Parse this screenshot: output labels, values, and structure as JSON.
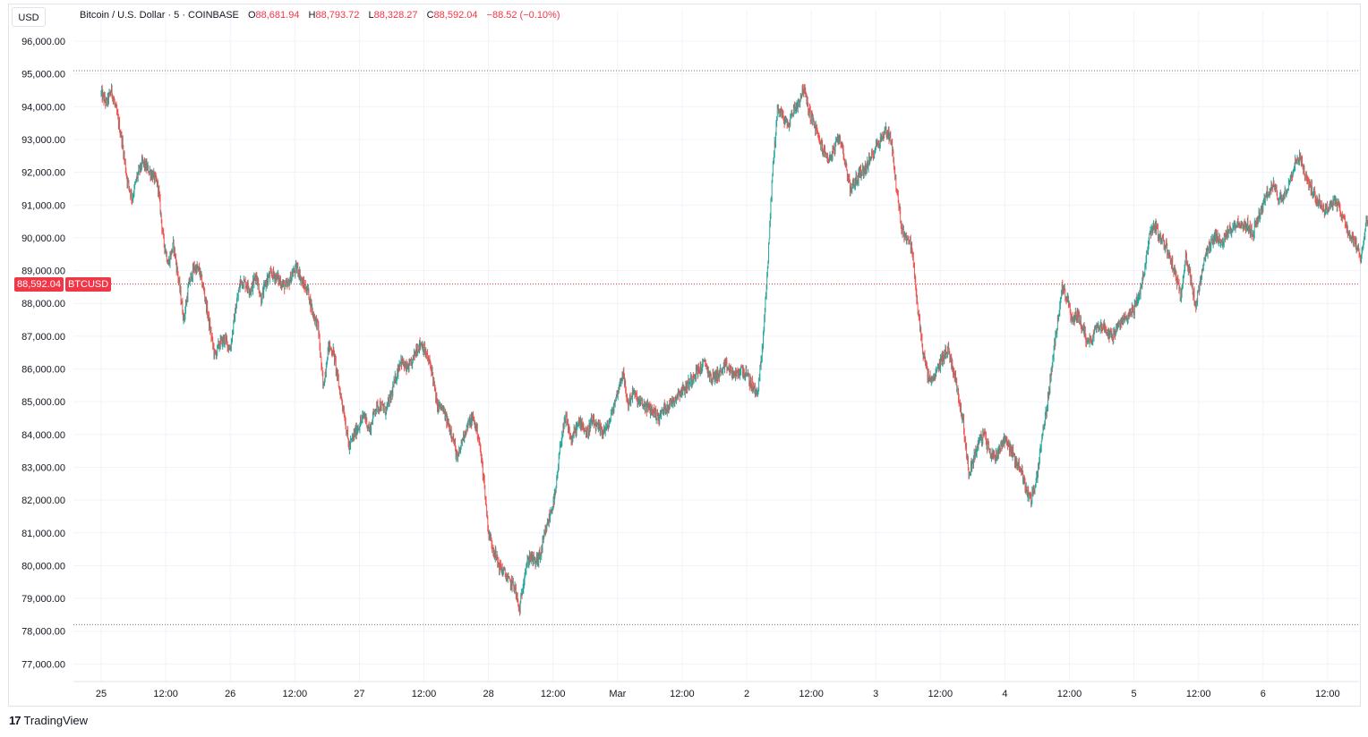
{
  "currency_button": "USD",
  "legend": {
    "instrument": "Bitcoin / U.S. Dollar · 5 · COINBASE",
    "o_label": "O",
    "o_value": "88,681.94",
    "h_label": "H",
    "h_value": "88,793.72",
    "l_label": "L",
    "l_value": "88,328.27",
    "c_label": "C",
    "c_value": "88,592.04",
    "change": "−88.52 (−0.10%)"
  },
  "price_tag": {
    "price": "88,592.04",
    "symbol": "BTCUSD"
  },
  "brand": {
    "logo": "17",
    "name": "TradingView"
  },
  "colors": {
    "up": "#26a69a",
    "down": "#ef5350",
    "accent": "#f23645",
    "grid": "#f0f3fa"
  },
  "chart_data": {
    "type": "candlestick",
    "symbol": "BTCUSD",
    "interval": "5",
    "y_ticks": [
      "77,000.00",
      "78,000.00",
      "79,000.00",
      "80,000.00",
      "81,000.00",
      "82,000.00",
      "83,000.00",
      "84,000.00",
      "85,000.00",
      "86,000.00",
      "87,000.00",
      "88,000.00",
      "89,000.00",
      "90,000.00",
      "91,000.00",
      "92,000.00",
      "93,000.00",
      "94,000.00",
      "95,000.00",
      "96,000.00"
    ],
    "ylim": [
      76500,
      96700
    ],
    "x_ticks": [
      "25",
      "12:00",
      "26",
      "12:00",
      "27",
      "12:00",
      "28",
      "12:00",
      "Mar",
      "12:00",
      "2",
      "12:00",
      "3",
      "12:00",
      "4",
      "12:00",
      "5",
      "12:00",
      "6",
      "12:00"
    ],
    "xlim": [
      0,
      10.04
    ],
    "range_high": 95100,
    "range_low": 78200,
    "last_price": 88592.04,
    "path": [
      [
        0.0,
        94400
      ],
      [
        0.04,
        94100
      ],
      [
        0.08,
        94500
      ],
      [
        0.12,
        93800
      ],
      [
        0.16,
        93000
      ],
      [
        0.2,
        91800
      ],
      [
        0.24,
        91200
      ],
      [
        0.28,
        91900
      ],
      [
        0.32,
        92300
      ],
      [
        0.36,
        92100
      ],
      [
        0.4,
        91900
      ],
      [
        0.44,
        91600
      ],
      [
        0.48,
        90000
      ],
      [
        0.52,
        89200
      ],
      [
        0.56,
        89800
      ],
      [
        0.6,
        88700
      ],
      [
        0.64,
        87500
      ],
      [
        0.68,
        88600
      ],
      [
        0.72,
        89100
      ],
      [
        0.76,
        89000
      ],
      [
        0.8,
        88300
      ],
      [
        0.84,
        87300
      ],
      [
        0.88,
        86400
      ],
      [
        0.92,
        86800
      ],
      [
        0.96,
        86900
      ],
      [
        1.0,
        86600
      ],
      [
        1.04,
        87800
      ],
      [
        1.08,
        88700
      ],
      [
        1.12,
        88600
      ],
      [
        1.16,
        88400
      ],
      [
        1.2,
        88900
      ],
      [
        1.24,
        88100
      ],
      [
        1.28,
        88700
      ],
      [
        1.32,
        88900
      ],
      [
        1.36,
        88800
      ],
      [
        1.4,
        88600
      ],
      [
        1.44,
        88500
      ],
      [
        1.48,
        88900
      ],
      [
        1.52,
        89100
      ],
      [
        1.56,
        88600
      ],
      [
        1.6,
        88400
      ],
      [
        1.64,
        87700
      ],
      [
        1.68,
        87300
      ],
      [
        1.72,
        85400
      ],
      [
        1.76,
        86700
      ],
      [
        1.8,
        86500
      ],
      [
        1.84,
        85500
      ],
      [
        1.88,
        84700
      ],
      [
        1.92,
        83600
      ],
      [
        1.96,
        84000
      ],
      [
        2.0,
        84300
      ],
      [
        2.04,
        84600
      ],
      [
        2.08,
        84100
      ],
      [
        2.12,
        84800
      ],
      [
        2.16,
        84900
      ],
      [
        2.2,
        84700
      ],
      [
        2.24,
        85100
      ],
      [
        2.28,
        85700
      ],
      [
        2.32,
        86300
      ],
      [
        2.36,
        86000
      ],
      [
        2.4,
        86100
      ],
      [
        2.44,
        86600
      ],
      [
        2.48,
        86800
      ],
      [
        2.52,
        86400
      ],
      [
        2.56,
        86000
      ],
      [
        2.6,
        84900
      ],
      [
        2.64,
        84800
      ],
      [
        2.68,
        84400
      ],
      [
        2.72,
        84000
      ],
      [
        2.76,
        83200
      ],
      [
        2.8,
        83900
      ],
      [
        2.84,
        84300
      ],
      [
        2.88,
        84500
      ],
      [
        2.92,
        84000
      ],
      [
        2.96,
        82800
      ],
      [
        3.0,
        81000
      ],
      [
        3.04,
        80500
      ],
      [
        3.08,
        80000
      ],
      [
        3.12,
        79800
      ],
      [
        3.16,
        79500
      ],
      [
        3.2,
        79400
      ],
      [
        3.24,
        78600
      ],
      [
        3.28,
        79800
      ],
      [
        3.32,
        80300
      ],
      [
        3.36,
        80100
      ],
      [
        3.4,
        80300
      ],
      [
        3.44,
        81000
      ],
      [
        3.48,
        81600
      ],
      [
        3.52,
        82200
      ],
      [
        3.56,
        83800
      ],
      [
        3.6,
        84500
      ],
      [
        3.64,
        83800
      ],
      [
        3.68,
        84200
      ],
      [
        3.72,
        84400
      ],
      [
        3.76,
        84000
      ],
      [
        3.8,
        84400
      ],
      [
        3.84,
        84200
      ],
      [
        3.88,
        84100
      ],
      [
        3.92,
        84200
      ],
      [
        3.96,
        84700
      ],
      [
        4.0,
        85300
      ],
      [
        4.04,
        85900
      ],
      [
        4.08,
        84900
      ],
      [
        4.12,
        85300
      ],
      [
        4.16,
        85000
      ],
      [
        4.2,
        84900
      ],
      [
        4.24,
        84800
      ],
      [
        4.28,
        84700
      ],
      [
        4.32,
        84500
      ],
      [
        4.36,
        84800
      ],
      [
        4.4,
        84900
      ],
      [
        4.44,
        85100
      ],
      [
        4.48,
        85300
      ],
      [
        4.52,
        85400
      ],
      [
        4.56,
        85600
      ],
      [
        4.6,
        85900
      ],
      [
        4.64,
        86000
      ],
      [
        4.68,
        86200
      ],
      [
        4.72,
        85700
      ],
      [
        4.76,
        85800
      ],
      [
        4.8,
        85900
      ],
      [
        4.84,
        86100
      ],
      [
        4.88,
        85900
      ],
      [
        4.92,
        85800
      ],
      [
        4.96,
        86000
      ],
      [
        5.0,
        85800
      ],
      [
        5.04,
        85500
      ],
      [
        5.08,
        85200
      ],
      [
        5.12,
        86500
      ],
      [
        5.16,
        89000
      ],
      [
        5.2,
        92000
      ],
      [
        5.24,
        94000
      ],
      [
        5.28,
        93700
      ],
      [
        5.32,
        93400
      ],
      [
        5.36,
        93900
      ],
      [
        5.4,
        94100
      ],
      [
        5.44,
        94600
      ],
      [
        5.48,
        93900
      ],
      [
        5.52,
        93500
      ],
      [
        5.56,
        93000
      ],
      [
        5.6,
        92600
      ],
      [
        5.64,
        92400
      ],
      [
        5.68,
        92700
      ],
      [
        5.72,
        93100
      ],
      [
        5.76,
        92400
      ],
      [
        5.8,
        91500
      ],
      [
        5.84,
        91700
      ],
      [
        5.88,
        92000
      ],
      [
        5.92,
        92100
      ],
      [
        5.96,
        92400
      ],
      [
        6.0,
        92800
      ],
      [
        6.04,
        93000
      ],
      [
        6.08,
        93300
      ],
      [
        6.12,
        93000
      ],
      [
        6.16,
        91500
      ],
      [
        6.2,
        90300
      ],
      [
        6.24,
        90000
      ],
      [
        6.28,
        89700
      ],
      [
        6.32,
        88000
      ],
      [
        6.36,
        86700
      ],
      [
        6.4,
        85800
      ],
      [
        6.44,
        85600
      ],
      [
        6.48,
        86000
      ],
      [
        6.52,
        86400
      ],
      [
        6.56,
        86600
      ],
      [
        6.6,
        86000
      ],
      [
        6.64,
        85200
      ],
      [
        6.68,
        84300
      ],
      [
        6.72,
        82800
      ],
      [
        6.76,
        83300
      ],
      [
        6.8,
        83800
      ],
      [
        6.84,
        84000
      ],
      [
        6.88,
        83500
      ],
      [
        6.92,
        83300
      ],
      [
        6.96,
        83600
      ],
      [
        7.0,
        83900
      ],
      [
        7.04,
        83600
      ],
      [
        7.08,
        83200
      ],
      [
        7.12,
        83000
      ],
      [
        7.16,
        82400
      ],
      [
        7.2,
        82000
      ],
      [
        7.24,
        82500
      ],
      [
        7.28,
        83700
      ],
      [
        7.32,
        84700
      ],
      [
        7.36,
        85900
      ],
      [
        7.4,
        87200
      ],
      [
        7.44,
        88500
      ],
      [
        7.48,
        88200
      ],
      [
        7.52,
        87400
      ],
      [
        7.56,
        87700
      ],
      [
        7.6,
        87300
      ],
      [
        7.64,
        86800
      ],
      [
        7.68,
        87000
      ],
      [
        7.72,
        87400
      ],
      [
        7.76,
        87300
      ],
      [
        7.8,
        87100
      ],
      [
        7.84,
        87000
      ],
      [
        7.88,
        87300
      ],
      [
        7.92,
        87500
      ],
      [
        7.96,
        87700
      ],
      [
        8.0,
        87800
      ],
      [
        8.04,
        88300
      ],
      [
        8.08,
        88900
      ],
      [
        8.12,
        90100
      ],
      [
        8.16,
        90400
      ],
      [
        8.2,
        90000
      ],
      [
        8.24,
        89800
      ],
      [
        8.28,
        89400
      ],
      [
        8.32,
        88900
      ],
      [
        8.36,
        88200
      ],
      [
        8.4,
        89500
      ],
      [
        8.44,
        88700
      ],
      [
        8.48,
        87900
      ],
      [
        8.52,
        88800
      ],
      [
        8.56,
        89500
      ],
      [
        8.6,
        89800
      ],
      [
        8.64,
        90100
      ],
      [
        8.68,
        89800
      ],
      [
        8.72,
        90100
      ],
      [
        8.76,
        90300
      ],
      [
        8.8,
        90500
      ],
      [
        8.84,
        90300
      ],
      [
        8.88,
        90400
      ],
      [
        8.92,
        90100
      ],
      [
        8.96,
        90600
      ],
      [
        9.0,
        91000
      ],
      [
        9.04,
        91400
      ],
      [
        9.08,
        91600
      ],
      [
        9.12,
        91200
      ],
      [
        9.16,
        91300
      ],
      [
        9.2,
        91700
      ],
      [
        9.24,
        92200
      ],
      [
        9.28,
        92500
      ],
      [
        9.32,
        92000
      ],
      [
        9.36,
        91600
      ],
      [
        9.4,
        91300
      ],
      [
        9.44,
        91100
      ],
      [
        9.48,
        90800
      ],
      [
        9.52,
        91000
      ],
      [
        9.56,
        91200
      ],
      [
        9.6,
        90800
      ],
      [
        9.64,
        90400
      ],
      [
        9.68,
        90000
      ],
      [
        9.72,
        89800
      ],
      [
        9.76,
        89300
      ],
      [
        9.8,
        90700
      ],
      [
        9.84,
        90100
      ],
      [
        9.88,
        89200
      ],
      [
        9.92,
        88592
      ]
    ]
  }
}
